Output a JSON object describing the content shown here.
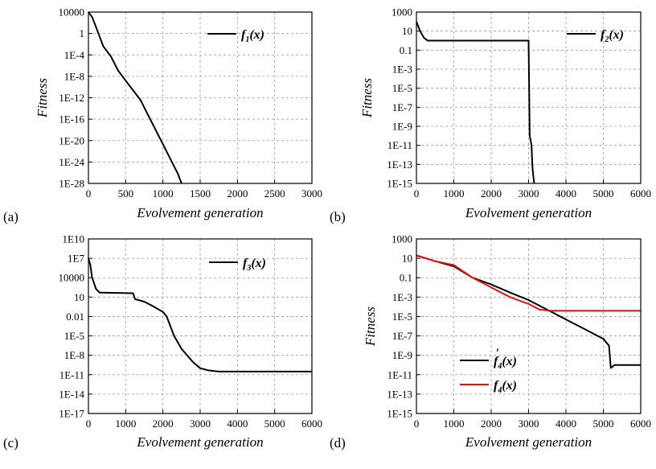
{
  "chart_data": [
    {
      "panel_label": "(a)",
      "type": "line",
      "xlabel": "Evolvement generation",
      "ylabel": "Fitness",
      "xlim": [
        0,
        3000
      ],
      "ylim_log10": [
        -31,
        4
      ],
      "y_scale": "log",
      "x_ticks": [
        "0",
        "500",
        "1000",
        "1500",
        "2000",
        "2500",
        "3000"
      ],
      "y_ticks": [
        "10000",
        "1",
        "1E-4",
        "1E-8",
        "1E-12",
        "1E-16",
        "1E-20",
        "1E-24",
        "1E-28"
      ],
      "grid": true,
      "legend_position": "top-right",
      "series": [
        {
          "name": "f",
          "name_sub": "1",
          "name_suffix": "(x)",
          "color": "#000000",
          "points": [
            [
              0,
              10000
            ],
            [
              50,
              1000
            ],
            [
              100,
              10
            ],
            [
              200,
              0.001
            ],
            [
              300,
              1e-05
            ],
            [
              400,
              1e-08
            ],
            [
              500,
              1e-10
            ],
            [
              600,
              1e-12
            ],
            [
              700,
              1e-14
            ],
            [
              800,
              1e-17
            ],
            [
              900,
              1e-20
            ],
            [
              1000,
              1e-23
            ],
            [
              1100,
              1e-26
            ],
            [
              1200,
              1e-29
            ],
            [
              1250,
              1e-31
            ]
          ]
        }
      ]
    },
    {
      "panel_label": "(b)",
      "type": "line",
      "xlabel": "Evolvement generation",
      "ylabel": "Fitness",
      "xlim": [
        0,
        6000
      ],
      "ylim_log10": [
        -15,
        3
      ],
      "y_scale": "log",
      "x_ticks": [
        "0",
        "1000",
        "2000",
        "3000",
        "4000",
        "5000",
        "6000"
      ],
      "y_ticks": [
        "1000",
        "10",
        "0.1",
        "1E-3",
        "1E-5",
        "1E-7",
        "1E-9",
        "1E-11",
        "1E-13",
        "1E-15"
      ],
      "grid": true,
      "legend_position": "top-right",
      "series": [
        {
          "name": "f",
          "name_sub": "2",
          "name_suffix": "(x)",
          "color": "#000000",
          "points": [
            [
              0,
              100
            ],
            [
              50,
              30
            ],
            [
              100,
              10
            ],
            [
              200,
              2
            ],
            [
              300,
              1
            ],
            [
              3000,
              1
            ],
            [
              3030,
              1e-10
            ],
            [
              3080,
              1e-11
            ],
            [
              3100,
              1e-13
            ],
            [
              3120,
              1e-14
            ],
            [
              3150,
              1e-15
            ]
          ]
        }
      ]
    },
    {
      "panel_label": "(c)",
      "type": "line",
      "xlabel": "Evolvement generation",
      "ylabel": "",
      "xlim": [
        0,
        6000
      ],
      "ylim_log10": [
        -17,
        10
      ],
      "y_scale": "log",
      "x_ticks": [
        "0",
        "1000",
        "2000",
        "3000",
        "4000",
        "5000",
        "6000"
      ],
      "y_ticks": [
        "1E10",
        "1E7",
        "10000",
        "10",
        "0.01",
        "1E-5",
        "1E-8",
        "1E-11",
        "1E-14",
        "1E-17"
      ],
      "grid": true,
      "legend_position": "top-right",
      "series": [
        {
          "name": "f",
          "name_sub": "3",
          "name_suffix": "(x)",
          "color": "#000000",
          "points": [
            [
              0,
              10000000.0
            ],
            [
              50,
              1000000.0
            ],
            [
              100,
              10000.0
            ],
            [
              200,
              200
            ],
            [
              300,
              50
            ],
            [
              1200,
              40
            ],
            [
              1250,
              5
            ],
            [
              1500,
              2
            ],
            [
              1700,
              0.5
            ],
            [
              2000,
              0.05
            ],
            [
              2100,
              0.01
            ],
            [
              2300,
              1e-05
            ],
            [
              2500,
              1e-07
            ],
            [
              2800,
              1e-09
            ],
            [
              3000,
              1e-10
            ],
            [
              3200,
              5e-11
            ],
            [
              3500,
              3e-11
            ],
            [
              6000,
              3e-11
            ]
          ]
        }
      ]
    },
    {
      "panel_label": "(d)",
      "type": "line",
      "xlabel": "Evolvement generation",
      "ylabel": "Fitness",
      "xlim": [
        0,
        6000
      ],
      "ylim_log10": [
        -15,
        3
      ],
      "y_scale": "log",
      "x_ticks": [
        "0",
        "1000",
        "2000",
        "3000",
        "4000",
        "5000",
        "6000"
      ],
      "y_ticks": [
        "1000",
        "10",
        "0.1",
        "1E-3",
        "1E-5",
        "1E-7",
        "1E-9",
        "1E-11",
        "1E-13",
        "1E-15"
      ],
      "grid": true,
      "legend_position": "bottom-left",
      "series": [
        {
          "name": "f",
          "name_sub": "4",
          "name_suffix": "(x)",
          "name_mark": "'",
          "color": "#000000",
          "points": [
            [
              0,
              20
            ],
            [
              500,
              5
            ],
            [
              1000,
              1.5
            ],
            [
              1500,
              0.1
            ],
            [
              2000,
              0.02
            ],
            [
              2500,
              0.003
            ],
            [
              3000,
              0.0005
            ],
            [
              3500,
              5e-05
            ],
            [
              4000,
              5e-06
            ],
            [
              4500,
              5e-07
            ],
            [
              5000,
              5e-08
            ],
            [
              5150,
              1e-08
            ],
            [
              5200,
              5e-11
            ],
            [
              5300,
              1e-10
            ],
            [
              6000,
              1e-10
            ]
          ]
        },
        {
          "name": "f",
          "name_sub": "4",
          "name_suffix": "(x)",
          "color": "#e8120c",
          "points": [
            [
              0,
              20
            ],
            [
              500,
              5
            ],
            [
              1000,
              2
            ],
            [
              1500,
              0.1
            ],
            [
              2000,
              0.01
            ],
            [
              2500,
              0.001
            ],
            [
              3000,
              0.0002
            ],
            [
              3300,
              5e-05
            ],
            [
              3600,
              4e-05
            ],
            [
              4000,
              4e-05
            ],
            [
              6000,
              4e-05
            ]
          ]
        }
      ]
    }
  ]
}
